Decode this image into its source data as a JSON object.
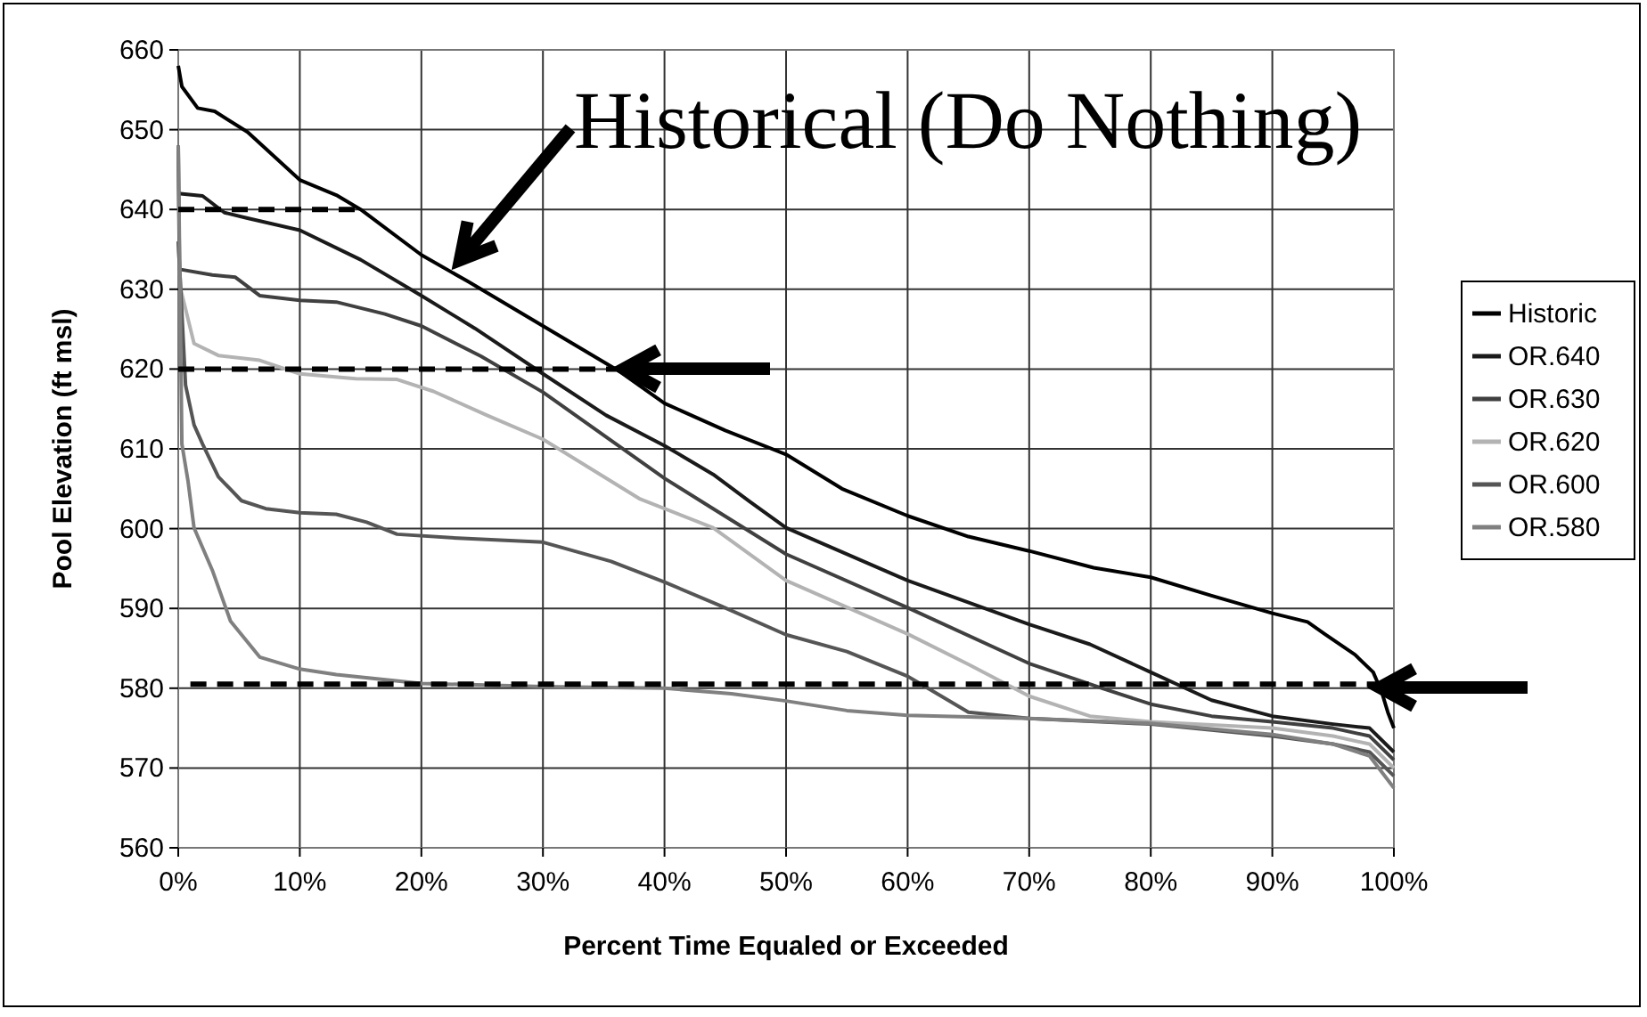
{
  "chart_data": {
    "type": "line",
    "xlabel": "Percent Time Equaled or Exceeded",
    "ylabel": "Pool Elevation (ft msl)",
    "annotations": [
      "Historical (Do Nothing)"
    ],
    "xlim": [
      0,
      100
    ],
    "xticks": [
      {
        "value": 0,
        "label": "0%"
      },
      {
        "value": 10,
        "label": "10%"
      },
      {
        "value": 20,
        "label": "20%"
      },
      {
        "value": 30,
        "label": "30%"
      },
      {
        "value": 40,
        "label": "40%"
      },
      {
        "value": 50,
        "label": "50%"
      },
      {
        "value": 60,
        "label": "60%"
      },
      {
        "value": 70,
        "label": "70%"
      },
      {
        "value": 80,
        "label": "80%"
      },
      {
        "value": 90,
        "label": "90%"
      },
      {
        "value": 100,
        "label": "100%"
      }
    ],
    "ylim": [
      560,
      660
    ],
    "yticks": [
      560,
      570,
      580,
      590,
      600,
      610,
      620,
      630,
      640,
      650,
      660
    ],
    "grid": true,
    "legend": "right",
    "marker": "none",
    "line_style": "solid",
    "series": [
      {
        "name": "Historic",
        "color": "#000000",
        "x": [
          0,
          0.3,
          1.6,
          3,
          5.7,
          10,
          13,
          15,
          20,
          23.8,
          30,
          36.2,
          40,
          45,
          50,
          54.6,
          60,
          65,
          70,
          75.3,
          80,
          85,
          90,
          92.9,
          94.3,
          96.8,
          98.3,
          99,
          99.5,
          100
        ],
        "values": [
          658,
          655.4,
          652.7,
          652.3,
          649.7,
          643.7,
          641.8,
          640,
          634.3,
          631,
          625.4,
          619.8,
          615.7,
          612.3,
          609.3,
          605,
          601.6,
          599,
          597.2,
          595.1,
          593.9,
          591.6,
          589.4,
          588.3,
          586.8,
          584.2,
          582,
          579.5,
          577,
          575
        ]
      },
      {
        "name": "OR.640",
        "color": "#1a1a1a",
        "x": [
          0,
          2,
          3.8,
          5.7,
          10,
          15,
          20,
          24.4,
          30,
          35.2,
          40,
          44,
          47,
          50,
          60,
          70,
          75,
          80,
          85,
          90,
          95,
          98,
          100
        ],
        "values": [
          642,
          641.7,
          639.6,
          638.9,
          637.4,
          633.7,
          629.2,
          625.1,
          619.4,
          614.2,
          610.4,
          606.8,
          603.4,
          600.1,
          593.5,
          588,
          585.5,
          582,
          578.5,
          576.5,
          575.5,
          575,
          572
        ]
      },
      {
        "name": "OR.630",
        "color": "#404040",
        "x": [
          0,
          0.1,
          2.8,
          4.7,
          6.7,
          10,
          13,
          17,
          20,
          24.9,
          30,
          40,
          44,
          50,
          60,
          70,
          76,
          80,
          85,
          90,
          95,
          98,
          100
        ],
        "values": [
          648,
          632.5,
          631.8,
          631.5,
          629.2,
          628.6,
          628.4,
          626.9,
          625.4,
          621.6,
          617.1,
          606.3,
          602.5,
          596.8,
          590.1,
          583.1,
          580,
          578,
          576.5,
          575.8,
          575,
          574,
          571
        ]
      },
      {
        "name": "OR.620",
        "color": "#b3b3b3",
        "x": [
          0,
          0.2,
          1.3,
          3.3,
          6.7,
          10,
          14.6,
          18,
          21,
          25.4,
          30,
          38,
          44,
          50,
          60,
          65,
          70,
          75,
          80,
          90,
          95,
          98,
          100
        ],
        "values": [
          636,
          630,
          623.2,
          621.7,
          621.1,
          619.4,
          618.8,
          618.7,
          617.2,
          614.2,
          611.2,
          603.7,
          600.1,
          593.5,
          586.8,
          583,
          579,
          576.5,
          575.8,
          575,
          574,
          573,
          570
        ]
      },
      {
        "name": "OR.600",
        "color": "#555555",
        "x": [
          0,
          0.6,
          1.3,
          2,
          3.3,
          5.2,
          7.2,
          10,
          13,
          15.5,
          18,
          23,
          30,
          35.6,
          40,
          44.5,
          50,
          55,
          60,
          65,
          70,
          80,
          90,
          95,
          98,
          100
        ],
        "values": [
          636,
          618,
          613,
          610.6,
          606.5,
          603.5,
          602.5,
          602,
          601.8,
          600.8,
          599.3,
          598.8,
          598.3,
          595.9,
          593.3,
          590.4,
          586.7,
          584.6,
          581.5,
          577,
          576.2,
          575.5,
          574,
          573,
          572,
          569
        ]
      },
      {
        "name": "OR.580",
        "color": "#808080",
        "x": [
          0,
          0.3,
          0.8,
          1.3,
          2.8,
          4.3,
          6.7,
          10,
          13,
          20,
          30,
          40,
          45.5,
          50,
          55,
          60,
          70,
          80,
          90,
          95,
          98,
          100
        ],
        "values": [
          648,
          610.6,
          606,
          600.1,
          594.8,
          588.4,
          583.9,
          582.4,
          581.7,
          580.6,
          580.2,
          580,
          579.3,
          578.4,
          577.2,
          576.6,
          576.2,
          575.6,
          574.2,
          573,
          571.5,
          567.5
        ]
      },
      {
        "type": "line",
        "color": "#000000",
        "line_style": "dashed",
        "x": [
          0,
          15
        ],
        "values": [
          640,
          640
        ]
      },
      {
        "type": "line",
        "color": "#000000",
        "line_style": "dashed",
        "x": [
          0,
          36
        ],
        "values": [
          620,
          620
        ]
      },
      {
        "type": "line",
        "color": "#000000",
        "line_style": "dashed",
        "x": [
          1,
          99
        ],
        "values": [
          580.5,
          580.5
        ]
      }
    ]
  }
}
